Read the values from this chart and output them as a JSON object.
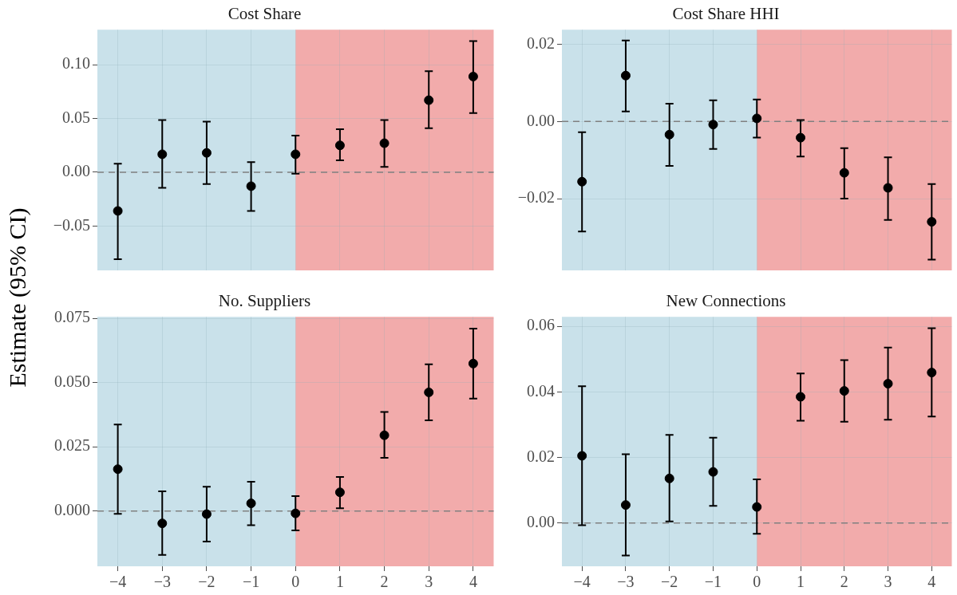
{
  "chart_data": [
    {
      "type": "scatter",
      "title": "Cost Share",
      "ylabel": "Estimate (95% CI)",
      "x": [
        -4,
        -3,
        -2,
        -1,
        0,
        1,
        2,
        3,
        4
      ],
      "series": [
        {
          "color": "#000000",
          "values": [
            -0.036,
            0.0167,
            0.018,
            -0.013,
            0.0167,
            0.025,
            0.027,
            0.067,
            0.089
          ],
          "errors": [
            [
              -0.081,
              0.008
            ],
            [
              -0.0145,
              0.0486
            ],
            [
              -0.011,
              0.047
            ],
            [
              -0.036,
              0.0094
            ],
            [
              -0.0014,
              0.034
            ],
            [
              0.011,
              0.04
            ],
            [
              0.005,
              0.0486
            ],
            [
              0.041,
              0.094
            ],
            [
              0.055,
              0.122
            ]
          ]
        }
      ],
      "xlim": [
        -4.46,
        4.46
      ],
      "xticks": [
        -4,
        -3,
        -2,
        -1,
        0,
        1,
        2,
        3,
        4
      ],
      "ylim": [
        -0.0913,
        0.1326
      ],
      "yticks": [
        {
          "value": -0.05,
          "label": "−0.05"
        },
        {
          "value": 0,
          "label": "0.00"
        },
        0.05,
        {
          "value": 0.1,
          "label": "0.10"
        }
      ],
      "tick_labels": "y",
      "grid": true,
      "marker": "circle",
      "ref_lines": [
        {
          "axis": "y",
          "value": 0,
          "color": "#808080",
          "line_style": "dashed"
        }
      ],
      "bands": [
        {
          "axis": "x",
          "from": -4.46,
          "to": 0,
          "color": "#c9e1ea"
        },
        {
          "axis": "x",
          "from": 0,
          "to": 4.46,
          "color": "#f2abab"
        }
      ]
    },
    {
      "type": "scatter",
      "title": "Cost Share HHI",
      "x": [
        -4,
        -3,
        -2,
        -1,
        0,
        1,
        2,
        3,
        4
      ],
      "series": [
        {
          "color": "#000000",
          "values": [
            -0.0156,
            0.0119,
            -0.0034,
            -0.0008,
            0.0008,
            -0.0042,
            -0.0133,
            -0.0172,
            -0.026
          ],
          "errors": [
            [
              -0.0285,
              -0.0028
            ],
            [
              0.0026,
              0.021
            ],
            [
              -0.0115,
              0.0046
            ],
            [
              -0.0071,
              0.0055
            ],
            [
              -0.0042,
              0.0057
            ],
            [
              -0.0091,
              0.0004
            ],
            [
              -0.02,
              -0.0069
            ],
            [
              -0.0255,
              -0.0093
            ],
            [
              -0.0358,
              -0.0162
            ]
          ]
        }
      ],
      "xlim": [
        -4.46,
        4.46
      ],
      "xticks": [
        -4,
        -3,
        -2,
        -1,
        0,
        1,
        2,
        3,
        4
      ],
      "ylim": [
        -0.0386,
        0.0238
      ],
      "yticks": [
        {
          "value": -0.02,
          "label": "−0.02"
        },
        {
          "value": 0,
          "label": "0.00"
        },
        0.02
      ],
      "tick_labels": "y",
      "grid": true,
      "marker": "circle",
      "ref_lines": [
        {
          "axis": "y",
          "value": 0,
          "color": "#808080",
          "line_style": "dashed"
        }
      ],
      "bands": [
        {
          "axis": "x",
          "from": -4.46,
          "to": 0,
          "color": "#c9e1ea"
        },
        {
          "axis": "x",
          "from": 0,
          "to": 4.46,
          "color": "#f2abab"
        }
      ]
    },
    {
      "type": "scatter",
      "title": "No. Suppliers",
      "x": [
        -4,
        -3,
        -2,
        -1,
        0,
        1,
        2,
        3,
        4
      ],
      "series": [
        {
          "color": "#000000",
          "values": [
            0.0163,
            -0.0048,
            -0.0012,
            0.003,
            -0.0009,
            0.0073,
            0.0295,
            0.0462,
            0.0574
          ],
          "errors": [
            [
              -0.0011,
              0.0337
            ],
            [
              -0.0171,
              0.0077
            ],
            [
              -0.0119,
              0.0095
            ],
            [
              -0.0055,
              0.0114
            ],
            [
              -0.0075,
              0.0058
            ],
            [
              0.0011,
              0.0133
            ],
            [
              0.0207,
              0.0386
            ],
            [
              0.0353,
              0.0571
            ],
            [
              0.0438,
              0.071
            ]
          ]
        }
      ],
      "xlim": [
        -4.46,
        4.46
      ],
      "xticks": [
        {
          "value": -4,
          "label": "−4"
        },
        {
          "value": -3,
          "label": "−3"
        },
        {
          "value": -2,
          "label": "−2"
        },
        {
          "value": -1,
          "label": "−1"
        },
        0,
        1,
        2,
        3,
        4
      ],
      "ylim": [
        -0.0215,
        0.0756
      ],
      "yticks": [
        {
          "value": 0,
          "label": "0.000"
        },
        0.025,
        {
          "value": 0.05,
          "label": "0.050"
        },
        0.075
      ],
      "grid": true,
      "marker": "circle",
      "ref_lines": [
        {
          "axis": "y",
          "value": 0,
          "color": "#808080",
          "line_style": "dashed"
        }
      ],
      "bands": [
        {
          "axis": "x",
          "from": -4.46,
          "to": 0,
          "color": "#c9e1ea"
        },
        {
          "axis": "x",
          "from": 0,
          "to": 4.46,
          "color": "#f2abab"
        }
      ]
    },
    {
      "type": "scatter",
      "title": "New Connections",
      "x": [
        -4,
        -3,
        -2,
        -1,
        0,
        1,
        2,
        3,
        4
      ],
      "series": [
        {
          "color": "#000000",
          "values": [
            0.0205,
            0.0055,
            0.0136,
            0.0156,
            0.0049,
            0.0385,
            0.0403,
            0.0425,
            0.0459
          ],
          "errors": [
            [
              -0.0007,
              0.0417
            ],
            [
              -0.0099,
              0.021
            ],
            [
              0.0005,
              0.0269
            ],
            [
              0.0052,
              0.026
            ],
            [
              -0.0033,
              0.0133
            ],
            [
              0.0312,
              0.0456
            ],
            [
              0.0309,
              0.0497
            ],
            [
              0.0315,
              0.0535
            ],
            [
              0.0325,
              0.0594
            ]
          ]
        }
      ],
      "xlim": [
        -4.46,
        4.46
      ],
      "xticks": [
        {
          "value": -4,
          "label": "−4"
        },
        {
          "value": -3,
          "label": "−3"
        },
        {
          "value": -2,
          "label": "−2"
        },
        {
          "value": -1,
          "label": "−1"
        },
        0,
        1,
        2,
        3,
        4
      ],
      "ylim": [
        -0.0132,
        0.0629
      ],
      "yticks": [
        {
          "value": 0,
          "label": "0.00"
        },
        0.02,
        0.04,
        0.06
      ],
      "grid": true,
      "marker": "circle",
      "ref_lines": [
        {
          "axis": "y",
          "value": 0,
          "color": "#808080",
          "line_style": "dashed"
        }
      ],
      "bands": [
        {
          "axis": "x",
          "from": -4.46,
          "to": 0,
          "color": "#c9e1ea"
        },
        {
          "axis": "x",
          "from": 0,
          "to": 4.46,
          "color": "#f2abab"
        }
      ]
    }
  ]
}
